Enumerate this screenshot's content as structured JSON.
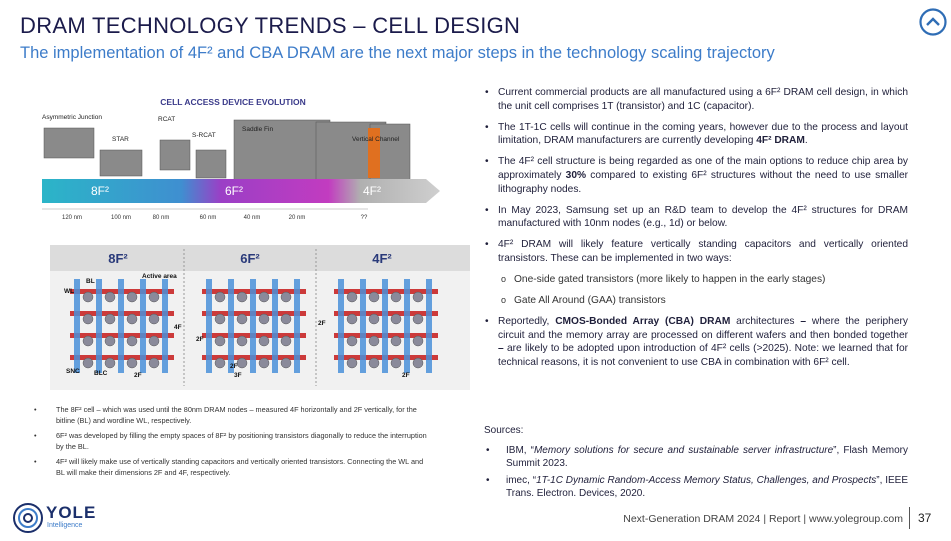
{
  "header": {
    "title": "DRAM TECHNOLOGY TRENDS – CELL DESIGN",
    "subtitle": "The implementation of 4F² and CBA DRAM are the next major steps in the technology scaling trajectory"
  },
  "figure_top": {
    "title": "CELL ACCESS DEVICE EVOLUTION",
    "stages": [
      "Asymmetric Junction",
      "STAR",
      "RCAT",
      "S-RCAT",
      "Saddle Fin",
      "Vertical Channel"
    ],
    "eras": [
      "8F²",
      "6F²",
      "4F²"
    ],
    "scale": [
      "120 nm",
      "100 nm",
      "80 nm",
      "60 nm",
      "40 nm",
      "20 nm",
      "??"
    ]
  },
  "figure_bottom": {
    "headers": [
      "8F²",
      "6F²",
      "4F²"
    ],
    "labels": [
      "BL",
      "WL",
      "Active area",
      "4F",
      "2F",
      "SNC",
      "BLC",
      "2F",
      "2F",
      "3F",
      "2F",
      "2F"
    ]
  },
  "notes": [
    "The 8F² cell – which was used until the 80nm DRAM nodes – measured 4F horizontally and 2F vertically, for the bitline (BL) and wordline WL, respectively.",
    "6F² was developed by filling the empty spaces of 8F² by positioning transistors diagonally to reduce the interruption by the BL.",
    "4F² will likely make use of vertically standing capacitors and vertically oriented transistors. Connecting the WL and BL will make their dimensions 2F and 4F, respectively."
  ],
  "bullets": [
    [
      "Current commercial products are all manufactured using a 6F² DRAM cell design, in which the unit cell comprises 1T (transistor) and 1C (capacitor)."
    ],
    [
      "The 1T-1C cells will continue in the coming years, however due to the process and layout limitation, DRAM manufacturers are currently developing ",
      "4F² DRAM",
      "."
    ],
    [
      "The 4F² cell structure is being regarded as one of the main options to reduce chip area by approximately ",
      "30%",
      " compared to existing 6F² structures without the need to use smaller lithography nodes."
    ],
    [
      "In May 2023, Samsung set up an R&D team to develop the 4F² structures for DRAM manufactured with 10nm nodes (e.g., 1d) or below."
    ],
    [
      "4F² DRAM will likely feature vertically standing capacitors and vertically oriented transistors. These can be implemented in two ways:"
    ],
    [
      "Reportedly, ",
      "CMOS-Bonded Array (CBA) DRAM",
      " architectures ",
      "–",
      " where the periphery circuit and the memory array are processed on different wafers and then bonded together ",
      "–",
      " are likely to be adopted upon introduction of 4F² cells (>2025). Note: we learned that for technical reasons, it is not convenient to use CBA in combination with 6F² cell."
    ]
  ],
  "sub_bullets": [
    "One-side gated transistors (more likely to happen in the early stages)",
    "Gate All Around (GAA) transistors"
  ],
  "sources": {
    "title": "Sources:",
    "items": [
      [
        "IBM, “",
        "Memory solutions for secure and sustainable server infrastructure",
        "”, Flash Memory Summit 2023."
      ],
      [
        "imec, “",
        "1T-1C Dynamic Random-Access Memory Status, Challenges, and Prospects",
        "”, IEEE Trans. Electron. Devices, 2020."
      ]
    ]
  },
  "footer": {
    "logo": "YOLE",
    "logo_sub": "Intelligence",
    "text": "Next-Generation DRAM 2024 | Report | www.yolegroup.com",
    "page": "37"
  }
}
